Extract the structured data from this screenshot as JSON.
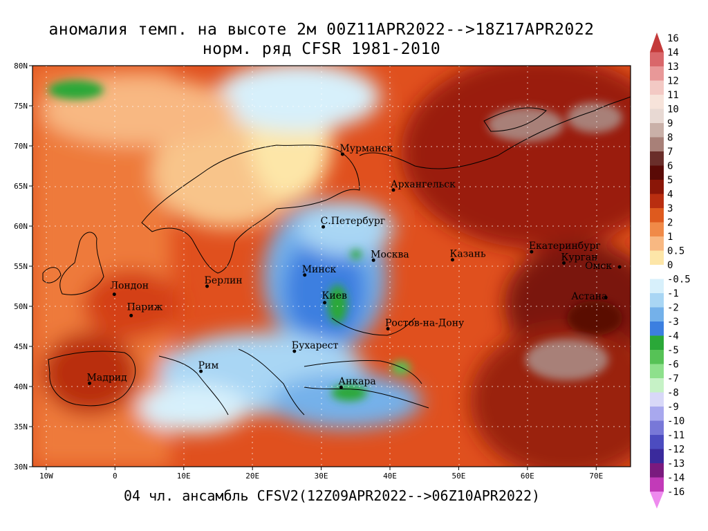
{
  "title": {
    "line1": "аномалия темп. на высоте 2м 00Z11APR2022-->18Z17APR2022",
    "line2": "норм. ряд CFSR 1981-2010"
  },
  "footer": "04 чл. ансамбль CFSV2(12Z09APR2022-->06Z10APR2022)",
  "lat_labels": [
    "80N",
    "75N",
    "70N",
    "65N",
    "60N",
    "55N",
    "50N",
    "45N",
    "40N",
    "35N",
    "30N"
  ],
  "lon_labels": [
    "10W",
    "0",
    "10E",
    "20E",
    "30E",
    "40E",
    "50E",
    "60E",
    "70E"
  ],
  "cities": [
    {
      "name": "Мурманск",
      "lon": 33.1,
      "lat": 68.97
    },
    {
      "name": "Архангельск",
      "lon": 40.5,
      "lat": 64.5
    },
    {
      "name": "С.Петербург",
      "lon": 30.3,
      "lat": 59.9
    },
    {
      "name": "Москва",
      "lon": 37.6,
      "lat": 55.75
    },
    {
      "name": "Казань",
      "lon": 49.1,
      "lat": 55.8
    },
    {
      "name": "Екатеринбург",
      "lon": 60.6,
      "lat": 56.8
    },
    {
      "name": "Курган",
      "lon": 65.3,
      "lat": 55.4
    },
    {
      "name": "Омск",
      "lon": 73.4,
      "lat": 54.9
    },
    {
      "name": "Астана",
      "lon": 71.4,
      "lat": 51.1
    },
    {
      "name": "Минск",
      "lon": 27.6,
      "lat": 53.9
    },
    {
      "name": "Киев",
      "lon": 30.5,
      "lat": 50.45
    },
    {
      "name": "Берлин",
      "lon": 13.4,
      "lat": 52.5
    },
    {
      "name": "Лондон",
      "lon": -0.1,
      "lat": 51.5
    },
    {
      "name": "Париж",
      "lon": 2.35,
      "lat": 48.85
    },
    {
      "name": "Ростов-на-Дону",
      "lon": 39.7,
      "lat": 47.2
    },
    {
      "name": "Бухарест",
      "lon": 26.1,
      "lat": 44.4
    },
    {
      "name": "Рим",
      "lon": 12.5,
      "lat": 41.9
    },
    {
      "name": "Мадрид",
      "lon": -3.7,
      "lat": 40.4
    },
    {
      "name": "Анкара",
      "lon": 32.9,
      "lat": 39.9
    }
  ],
  "colorbar": {
    "labels": [
      "16",
      "14",
      "13",
      "12",
      "11",
      "10",
      "9",
      "8",
      "7",
      "6",
      "5",
      "4",
      "3",
      "2",
      "1",
      "0.5",
      "0",
      "-0.5",
      "-1",
      "-2",
      "-3",
      "-4",
      "-5",
      "-6",
      "-7",
      "-8",
      "-9",
      "-10",
      "-11",
      "-12",
      "-13",
      "-14",
      "-16"
    ],
    "colors": [
      "#c43a3a",
      "#d9676a",
      "#e89898",
      "#f3c9c4",
      "#f7e3da",
      "#e8d9d3",
      "#c9b0a8",
      "#a88078",
      "#6a2e2a",
      "#5a0a06",
      "#8a1608",
      "#b92e10",
      "#de5a1e",
      "#f08a48",
      "#f8b882",
      "#fde6a8",
      "#ffffff",
      "#d7f0fb",
      "#a9d6f4",
      "#74b1ea",
      "#3c7fe0",
      "#2aa838",
      "#56c256",
      "#8ee08c",
      "#c6f2c6",
      "#d8d8f8",
      "#a8a8ee",
      "#7878d8",
      "#4c4cc0",
      "#3a2a9c",
      "#7a1a7e",
      "#c23ab8",
      "#ee8aee"
    ]
  }
}
